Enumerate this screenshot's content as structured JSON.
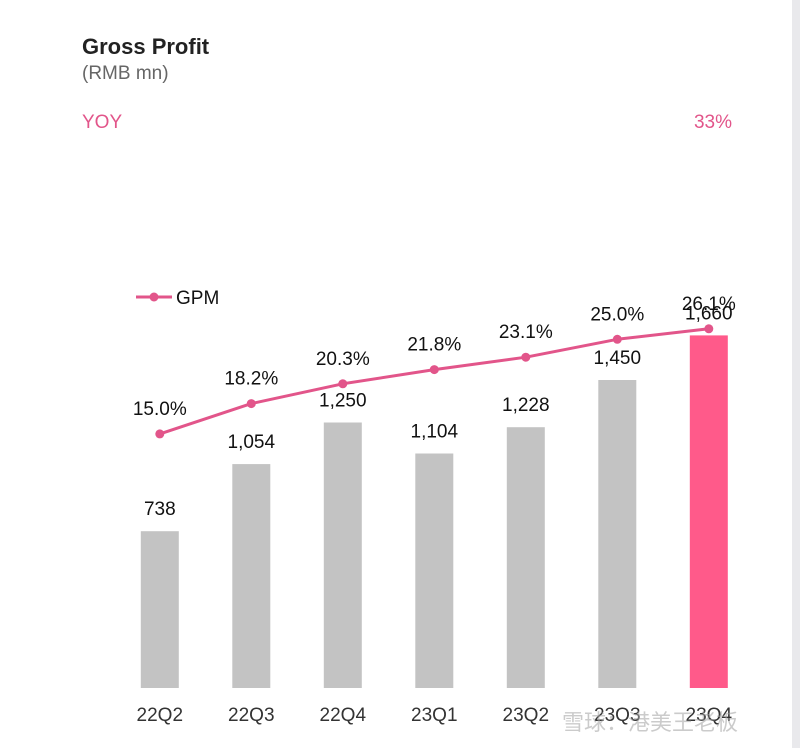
{
  "chart_data": {
    "type": "bar",
    "title": "Gross Profit",
    "subtitle": "(RMB mn)",
    "yoy_label": "YOY",
    "yoy_value": "33%",
    "categories": [
      "22Q2",
      "22Q3",
      "22Q4",
      "23Q1",
      "23Q2",
      "23Q3",
      "23Q4"
    ],
    "series": [
      {
        "name": "Gross Profit",
        "type": "bar",
        "values": [
          738,
          1054,
          1250,
          1104,
          1228,
          1450,
          1660
        ],
        "value_labels": [
          "738",
          "1,054",
          "1,250",
          "1,104",
          "1,228",
          "1,450",
          "1,660"
        ],
        "color": "#c3c3c3",
        "highlight_index": 6,
        "highlight_color": "#ff5a8a"
      },
      {
        "name": "GPM",
        "type": "line",
        "values": [
          15.0,
          18.2,
          20.3,
          21.8,
          23.1,
          25.0,
          26.1
        ],
        "value_labels": [
          "15.0%",
          "18.2%",
          "20.3%",
          "21.8%",
          "23.1%",
          "25.0%",
          "26.1%"
        ],
        "color": "#e2558a"
      }
    ],
    "legend": {
      "entries": [
        "GPM"
      ],
      "position": "left"
    },
    "bar_ylim": [
      0,
      1850
    ],
    "line_ylim": [
      0,
      30
    ],
    "grid": false
  },
  "watermark": "雪球：港美王老板",
  "colors": {
    "title": "#222222",
    "subtitle": "#666666",
    "accent": "#e2558a",
    "label": "#111111"
  }
}
